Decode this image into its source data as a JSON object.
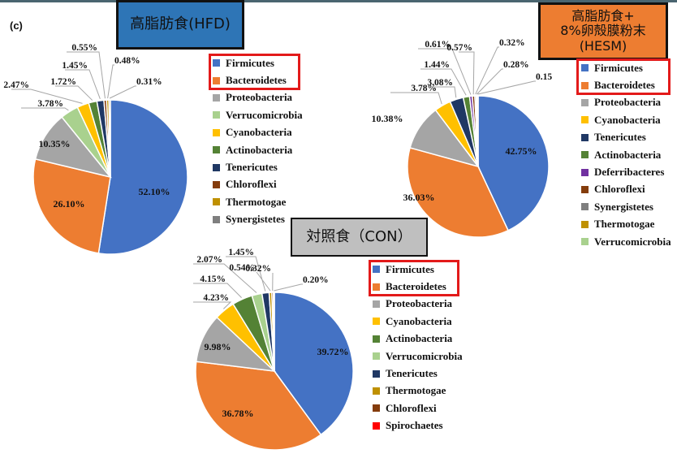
{
  "panel_label": "(c)",
  "colors": {
    "Firmicutes": "#4472c4",
    "Bacteroidetes": "#ed7d31",
    "Proteobacteria": "#a5a5a5",
    "Verrucomicrobia": "#a9d18e",
    "Cyanobacteria": "#ffc000",
    "Actinobacteria": "#548235",
    "Tenericutes": "#203864",
    "Chloroflexi": "#843c0c",
    "Thermotogae": "#bf9000",
    "Synergistetes": "#7f7f7f",
    "Deferribacteres": "#7030a0",
    "Spirochaetes": "#ff0000"
  },
  "charts": {
    "hfd": {
      "title": "高脂肪食(HFD)"
    },
    "hesm": {
      "title": "高脂肪食+\n8%卵殻膜粉末\n(HESM)"
    },
    "con": {
      "title": "対照食（CON）"
    }
  },
  "chart_data": [
    {
      "type": "pie",
      "title": "高脂肪食(HFD)",
      "categories": [
        "Firmicutes",
        "Bacteroidetes",
        "Proteobacteria",
        "Verrucomicrobia",
        "Cyanobacteria",
        "Actinobacteria",
        "Tenericutes",
        "Chloroflexi",
        "Thermotogae",
        "Synergistetes"
      ],
      "values": [
        52.1,
        26.1,
        10.35,
        3.78,
        2.47,
        1.72,
        1.45,
        0.55,
        0.48,
        0.31
      ],
      "labels": [
        "52.10%",
        "26.10%",
        "10.35%",
        "3.78%",
        "2.47%",
        "1.72%",
        "1.45%",
        "0.55%",
        "0.48%",
        "0.31%"
      ],
      "legend": [
        "Firmicutes",
        "Bacteroidetes",
        "Proteobacteria",
        "Verrucomicrobia",
        "Cyanobacteria",
        "Actinobacteria",
        "Tenericutes",
        "Chloroflexi",
        "Thermotogae",
        "Synergistetes"
      ],
      "highlighted_legend": [
        "Firmicutes",
        "Bacteroidetes"
      ]
    },
    {
      "type": "pie",
      "title": "高脂肪食+8%卵殻膜粉末(HESM)",
      "categories": [
        "Firmicutes",
        "Bacteroidetes",
        "Proteobacteria",
        "Cyanobacteria",
        "Tenericutes",
        "Actinobacteria",
        "Deferribacteres",
        "Chloroflexi",
        "Synergistetes",
        "Thermotogae",
        "Verrucomicrobia"
      ],
      "values": [
        42.75,
        36.03,
        10.38,
        3.78,
        3.08,
        1.44,
        0.61,
        0.57,
        0.32,
        0.28,
        0.15
      ],
      "labels": [
        "42.75%",
        "36.03%",
        "10.38%",
        "3.78%",
        "3.08%",
        "1.44%",
        "0.61%",
        "0.57%",
        "0.32%",
        "0.28%",
        "0.15"
      ],
      "legend": [
        "Firmicutes",
        "Bacteroidetes",
        "Proteobacteria",
        "Cyanobacteria",
        "Tenericutes",
        "Actinobacteria",
        "Deferribacteres",
        "Chloroflexi",
        "Synergistetes",
        "Thermotogae",
        "Verrucomicrobia"
      ],
      "highlighted_legend": [
        "Firmicutes",
        "Bacteroidetes"
      ]
    },
    {
      "type": "pie",
      "title": "対照食（CON）",
      "categories": [
        "Firmicutes",
        "Bacteroidetes",
        "Proteobacteria",
        "Cyanobacteria",
        "Actinobacteria",
        "Verrucomicrobia",
        "Tenericutes",
        "Thermotogae",
        "Chloroflexi",
        "Spirochaetes"
      ],
      "values": [
        39.72,
        36.78,
        9.98,
        4.23,
        4.15,
        2.07,
        1.45,
        0.54,
        0.32,
        0.2
      ],
      "labels": [
        "39.72%",
        "36.78%",
        "9.98%",
        "4.23%",
        "4.15%",
        "2.07%",
        "1.45%",
        "0.54%",
        "0.32%",
        "0.20%"
      ],
      "legend": [
        "Firmicutes",
        "Bacteroidetes",
        "Proteobacteria",
        "Cyanobacteria",
        "Actinobacteria",
        "Verrucomicrobia",
        "Tenericutes",
        "Thermotogae",
        "Chloroflexi",
        "Spirochaetes"
      ],
      "highlighted_legend": [
        "Firmicutes",
        "Bacteroidetes"
      ]
    }
  ]
}
